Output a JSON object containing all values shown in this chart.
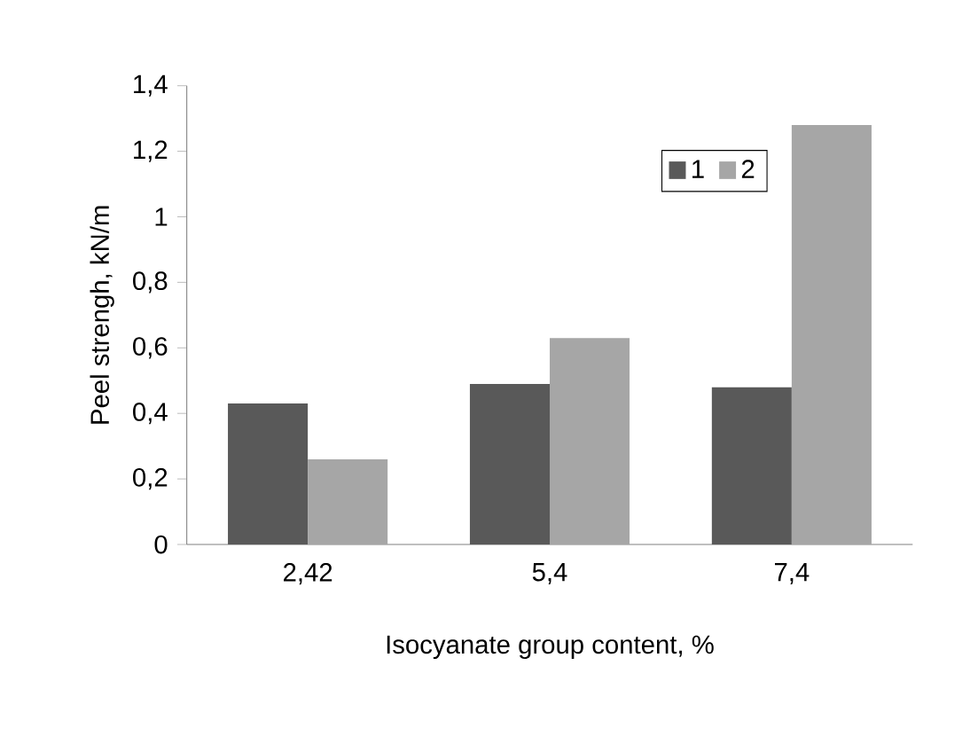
{
  "chart_data": {
    "type": "bar",
    "xlabel": "Isocyanate group content, %",
    "ylabel": "Peel strengh, kN/m",
    "categories": [
      "2,42",
      "5,4",
      "7,4"
    ],
    "series": [
      {
        "name": "1",
        "color": "#595959",
        "values": [
          0.43,
          0.49,
          0.48
        ]
      },
      {
        "name": "2",
        "color": "#a6a6a6",
        "values": [
          0.26,
          0.63,
          1.28
        ]
      }
    ],
    "ylim": [
      0,
      1.4
    ],
    "yticks": [
      0,
      {
        "value": 0.2,
        "label": "0,2"
      },
      {
        "value": 0.4,
        "label": "0,4"
      },
      {
        "value": 0.6,
        "label": "0,6"
      },
      {
        "value": 0.8,
        "label": "0,8"
      },
      1,
      {
        "value": 1.2,
        "label": "1,2"
      },
      {
        "value": 1.4,
        "label": "1,4"
      }
    ],
    "legend": "top right",
    "grid": false
  }
}
